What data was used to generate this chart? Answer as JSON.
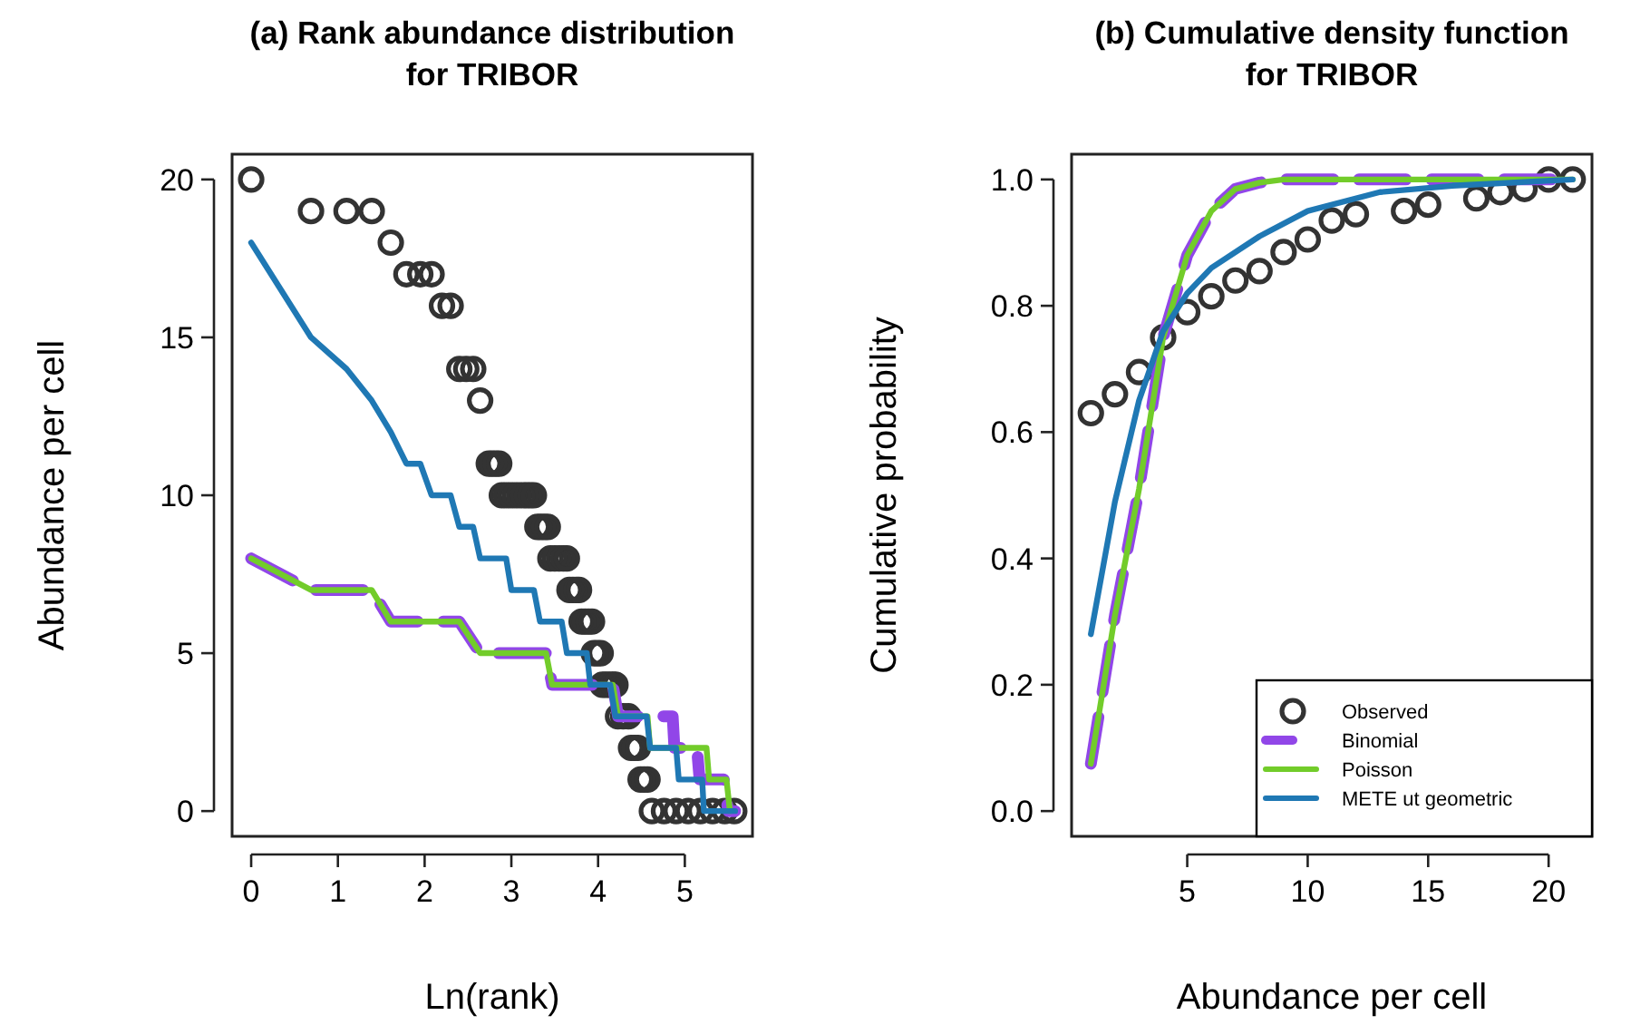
{
  "chart_data": [
    {
      "type": "line",
      "title": "(a) Rank abundance distribution\nfor TRIBOR",
      "xlabel": "Ln(rank)",
      "ylabel": "Abundance per cell",
      "xlim": [
        -0.22,
        5.78
      ],
      "ylim": [
        -0.8,
        20.8
      ],
      "xticks": [
        0,
        1,
        2,
        3,
        4,
        5
      ],
      "yticks": [
        0,
        5,
        10,
        15,
        20
      ],
      "series": [
        {
          "type": "scatter",
          "marker": "circle",
          "color": "#333333",
          "x": [
            0,
            0.69,
            1.1,
            1.39,
            1.61,
            1.79,
            1.95,
            2.08,
            2.2,
            2.3,
            2.4,
            2.48,
            2.56,
            2.64,
            2.74,
            2.78,
            2.82,
            2.86,
            2.89,
            2.94,
            2.99,
            3.04,
            3.09,
            3.14,
            3.18,
            3.22,
            3.26,
            3.3,
            3.34,
            3.38,
            3.42,
            3.45,
            3.5,
            3.55,
            3.6,
            3.64,
            3.67,
            3.71,
            3.75,
            3.78,
            3.81,
            3.85,
            3.89,
            3.93,
            3.95,
            3.99,
            4.03,
            4.05,
            4.09,
            4.13,
            4.17,
            4.2,
            4.23,
            4.29,
            4.35,
            4.38,
            4.42,
            4.46,
            4.49,
            4.53,
            4.57,
            4.62,
            4.76,
            4.9,
            5.04,
            5.18,
            5.32,
            5.46,
            5.57
          ],
          "values": [
            20,
            19,
            19,
            19,
            18,
            17,
            17,
            17,
            16,
            16,
            14,
            14,
            14,
            13,
            11,
            11,
            11,
            11,
            10,
            10,
            10,
            10,
            10,
            10,
            10,
            10,
            10,
            9,
            9,
            9,
            9,
            8,
            8,
            8,
            8,
            8,
            7,
            7,
            7,
            7,
            6,
            6,
            6,
            6,
            5,
            5,
            5,
            4,
            4,
            4,
            4,
            4,
            3,
            3,
            3,
            2,
            2,
            2,
            1,
            1,
            1,
            0,
            0,
            0,
            0,
            0,
            0,
            0,
            0
          ]
        },
        {
          "type": "line",
          "marker": "none",
          "line_style": "dashed",
          "color": "#9146e8",
          "x": [
            0,
            0.69,
            1.39,
            1.61,
            2.4,
            2.64,
            3.4,
            3.47,
            4.17,
            4.23,
            4.86,
            4.88,
            5.14,
            5.17,
            5.45,
            5.5,
            5.58
          ],
          "values": [
            8,
            7,
            7,
            6,
            6,
            5,
            5,
            4,
            4,
            3,
            3,
            2,
            2,
            1,
            1,
            0,
            0
          ]
        },
        {
          "type": "line",
          "marker": "none",
          "line_style": "solid",
          "color": "#72cc2a",
          "x": [
            0,
            0.69,
            1.39,
            1.61,
            2.4,
            2.64,
            3.4,
            3.47,
            4.17,
            4.23,
            4.57,
            4.6,
            5.25,
            5.28,
            5.48,
            5.52
          ],
          "values": [
            8,
            7,
            7,
            6,
            6,
            5,
            5,
            4,
            4,
            3,
            3,
            2,
            2,
            1,
            1,
            0
          ]
        },
        {
          "type": "line",
          "marker": "none",
          "line_style": "solid",
          "color": "#1f78b4",
          "x": [
            0,
            0.69,
            1.1,
            1.39,
            1.61,
            1.79,
            1.95,
            2.08,
            2.3,
            2.4,
            2.56,
            2.64,
            2.94,
            3.0,
            3.26,
            3.33,
            3.58,
            3.64,
            3.87,
            3.91,
            4.14,
            4.2,
            4.56,
            4.6,
            4.9,
            4.93,
            5.2,
            5.22,
            5.58
          ],
          "values": [
            18,
            15,
            14,
            13,
            12,
            11,
            11,
            10,
            10,
            9,
            9,
            8,
            8,
            7,
            7,
            6,
            6,
            5,
            5,
            4,
            4,
            3,
            3,
            2,
            2,
            1,
            1,
            0,
            0
          ]
        }
      ]
    },
    {
      "type": "line",
      "title": "(b) Cumulative density function\nfor TRIBOR",
      "xlabel": "Abundance per cell",
      "ylabel": "Cumulative probability",
      "xlim": [
        0.2,
        21.8
      ],
      "ylim": [
        -0.04,
        1.04
      ],
      "xticks": [
        5,
        10,
        15,
        20
      ],
      "yticks": [
        {
          "value": 0,
          "label": "0.0"
        },
        0.2,
        0.4,
        0.6,
        0.8,
        {
          "value": 1,
          "label": "1.0"
        }
      ],
      "legend": "bottom right",
      "series": [
        {
          "name": "Observed",
          "type": "scatter",
          "marker": "circle",
          "color": "#333333",
          "x": [
            1,
            2,
            3,
            4,
            5,
            6,
            7,
            8,
            9,
            10,
            11,
            12,
            14,
            15,
            17,
            18,
            19,
            20,
            21
          ],
          "values": [
            0.63,
            0.66,
            0.695,
            0.75,
            0.79,
            0.815,
            0.84,
            0.855,
            0.885,
            0.905,
            0.935,
            0.945,
            0.95,
            0.96,
            0.97,
            0.98,
            0.985,
            1.0,
            1.0
          ]
        },
        {
          "name": "Binomial",
          "type": "line",
          "marker": "none",
          "line_style": "dashed",
          "color": "#9146e8",
          "x": [
            1,
            2,
            3,
            4,
            5,
            6,
            7,
            8,
            9,
            21
          ],
          "values": [
            0.075,
            0.31,
            0.51,
            0.75,
            0.88,
            0.95,
            0.985,
            0.995,
            1,
            1
          ]
        },
        {
          "name": "Poisson",
          "type": "line",
          "marker": "none",
          "line_style": "solid",
          "color": "#72cc2a",
          "x": [
            1,
            2,
            3,
            4,
            5,
            6,
            7,
            8,
            9,
            21
          ],
          "values": [
            0.075,
            0.31,
            0.51,
            0.75,
            0.88,
            0.95,
            0.985,
            0.995,
            1,
            1
          ]
        },
        {
          "name": "METE ut geometric",
          "type": "line",
          "marker": "none",
          "line_style": "solid",
          "color": "#1f78b4",
          "x": [
            1,
            2,
            3,
            4,
            5,
            6,
            8,
            10,
            13,
            16,
            21
          ],
          "values": [
            0.28,
            0.49,
            0.65,
            0.76,
            0.82,
            0.86,
            0.91,
            0.95,
            0.98,
            0.99,
            1.0
          ]
        }
      ]
    }
  ]
}
